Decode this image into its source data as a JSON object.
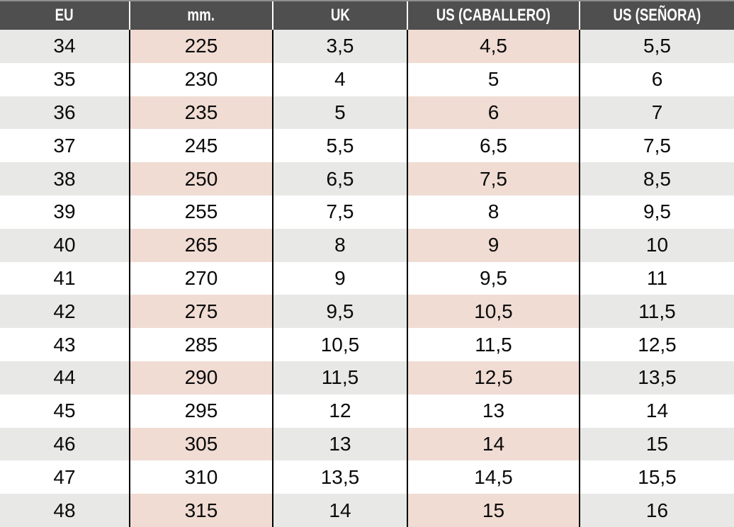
{
  "chart_data": {
    "type": "table",
    "columns": [
      "EU",
      "mm.",
      "UK",
      "US (CABALLERO)",
      "US (SEÑORA)"
    ],
    "rows": [
      [
        "34",
        "225",
        "3,5",
        "4,5",
        "5,5"
      ],
      [
        "35",
        "230",
        "4",
        "5",
        "6"
      ],
      [
        "36",
        "235",
        "5",
        "6",
        "7"
      ],
      [
        "37",
        "245",
        "5,5",
        "6,5",
        "7,5"
      ],
      [
        "38",
        "250",
        "6,5",
        "7,5",
        "8,5"
      ],
      [
        "39",
        "255",
        "7,5",
        "8",
        "9,5"
      ],
      [
        "40",
        "265",
        "8",
        "9",
        "10"
      ],
      [
        "41",
        "270",
        "9",
        "9,5",
        "11"
      ],
      [
        "42",
        "275",
        "9,5",
        "10,5",
        "11,5"
      ],
      [
        "43",
        "285",
        "10,5",
        "11,5",
        "12,5"
      ],
      [
        "44",
        "290",
        "11,5",
        "12,5",
        "13,5"
      ],
      [
        "45",
        "295",
        "12",
        "13",
        "14"
      ],
      [
        "46",
        "305",
        "13",
        "14",
        "15"
      ],
      [
        "47",
        "310",
        "13,5",
        "14,5",
        "15,5"
      ],
      [
        "48",
        "315",
        "14",
        "15",
        "16"
      ]
    ],
    "highlight_columns": [
      1,
      3
    ],
    "layout_hints": {
      "zebra_striping": "odd rows gray, even rows white",
      "highlight": "mm. and US (CABALLERO) columns tinted pink on striped rows",
      "header_dividers": "white vertical lines",
      "body_dividers": "black vertical lines",
      "grid": "no horizontal row borders"
    }
  },
  "colors": {
    "header_bg": "#4f4f4f",
    "header_text": "#ffffff",
    "stripe_row_bg": "#e8e8e7",
    "highlight_cell_bg": "#f0dcd3",
    "white_row_bg": "#ffffff",
    "column_divider_body": "#000000",
    "column_divider_header": "#ffffff",
    "top_edge_line": "#8f8f8f",
    "body_text": "#0a0a0a"
  }
}
